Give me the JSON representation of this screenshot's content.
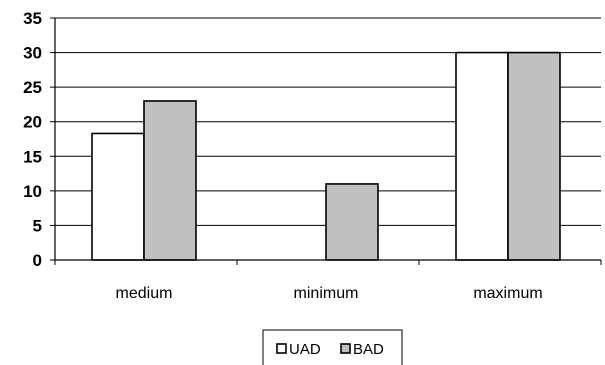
{
  "chart_data": {
    "type": "bar",
    "title": "",
    "xlabel": "",
    "ylabel": "",
    "categories": [
      "medium",
      "minimum",
      "maximum"
    ],
    "series": [
      {
        "name": "UAD",
        "values": [
          18.3,
          null,
          30
        ],
        "color": "#ffffff"
      },
      {
        "name": "BAD",
        "values": [
          23,
          11,
          30
        ],
        "color": "#c0c0c0"
      }
    ],
    "ylim": [
      0,
      35
    ],
    "yticks": [
      0,
      5,
      10,
      15,
      20,
      25,
      30,
      35
    ],
    "grid": true,
    "legend_position": "bottom"
  }
}
